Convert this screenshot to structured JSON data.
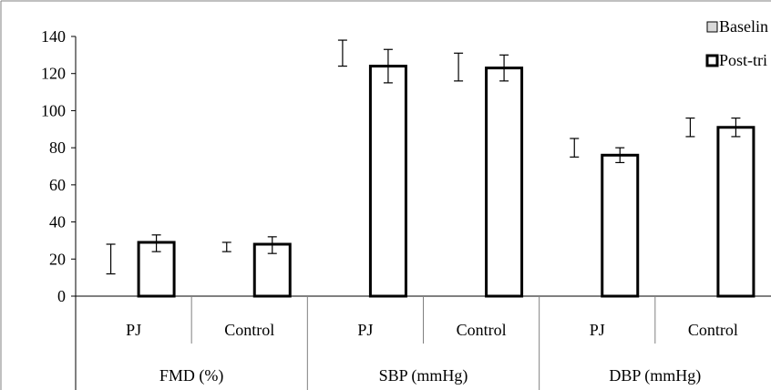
{
  "chart_data": {
    "type": "bar",
    "group_labels": [
      "FMD (%)",
      "SBP (mmHg)",
      "DBP (mmHg)"
    ],
    "categories": [
      "PJ",
      "Control",
      "PJ",
      "Control",
      "PJ",
      "Control"
    ],
    "ylim": [
      0,
      140
    ],
    "yticks": [
      0,
      20,
      40,
      60,
      80,
      100,
      120,
      140
    ],
    "series": [
      {
        "name": "Baselin",
        "fill": "#d9d9d9",
        "values": [
          0,
          0,
          0,
          0,
          0,
          0
        ],
        "error_low": [
          12,
          24,
          124,
          116,
          75,
          86
        ],
        "error_high": [
          28,
          29,
          138,
          131,
          85,
          96
        ]
      },
      {
        "name": "Post-tri",
        "fill": "#ffffff",
        "values": [
          29,
          28,
          124,
          123,
          76,
          91
        ],
        "error_low": [
          24,
          23,
          115,
          116,
          72,
          86
        ],
        "error_high": [
          33,
          32,
          133,
          130,
          80,
          96
        ]
      }
    ]
  },
  "colors": {
    "background": "#ffffff",
    "axis": "#000000",
    "separator": "#808080",
    "bar_stroke": "#000000"
  }
}
